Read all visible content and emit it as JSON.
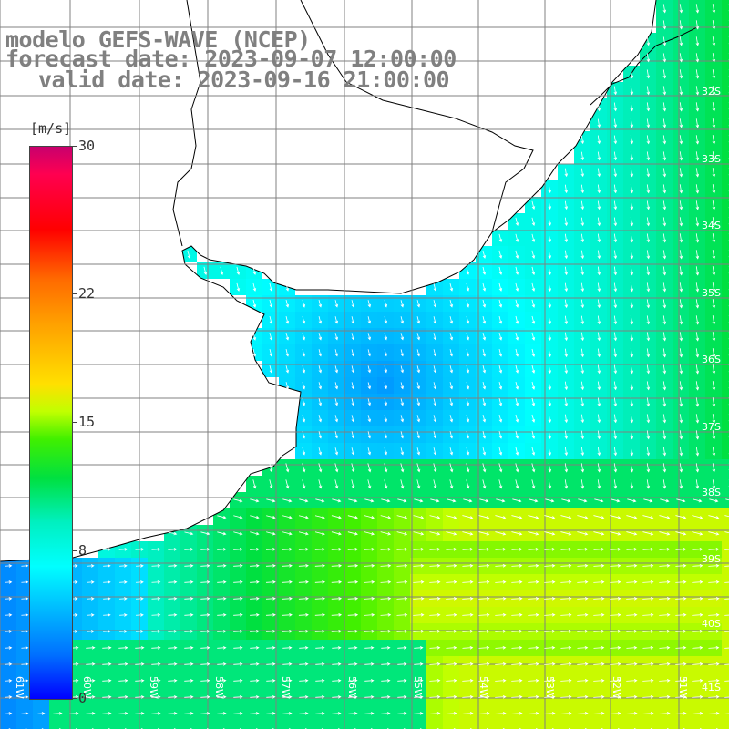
{
  "title": {
    "line1": "modelo GEFS-WAVE (NCEP)",
    "line2": "forecast date: 2023-09-07 12:00:00",
    "line3": "valid date: 2023-09-16 21:00:00"
  },
  "legend": {
    "unit": "[m/s]",
    "ticks": [
      {
        "label": "30",
        "value": 30
      },
      {
        "label": "22",
        "value": 22
      },
      {
        "label": "15",
        "value": 15
      },
      {
        "label": "8",
        "value": 8
      },
      {
        "label": "0",
        "value": 0
      }
    ],
    "colors": [
      "#0000ff",
      "#0070ff",
      "#00b8ff",
      "#00ffff",
      "#00f0c0",
      "#00e040",
      "#40f000",
      "#c0ff00",
      "#ffe000",
      "#ffa000",
      "#ff6a00",
      "#ff0000",
      "#ff0050",
      "#c8006e"
    ]
  },
  "axes": {
    "lon_labels": [
      "61W",
      "60W",
      "59W",
      "58W",
      "57W",
      "56W",
      "55W",
      "54W",
      "53W",
      "52W",
      "51W"
    ],
    "lat_labels": [
      "32S",
      "33S",
      "34S",
      "35S",
      "36S",
      "37S",
      "38S",
      "39S",
      "40S",
      "41S"
    ]
  },
  "colors": {
    "land": "#ffffff",
    "grid": "#808080",
    "coast": "#000000",
    "arrow": "#ffffff"
  }
}
